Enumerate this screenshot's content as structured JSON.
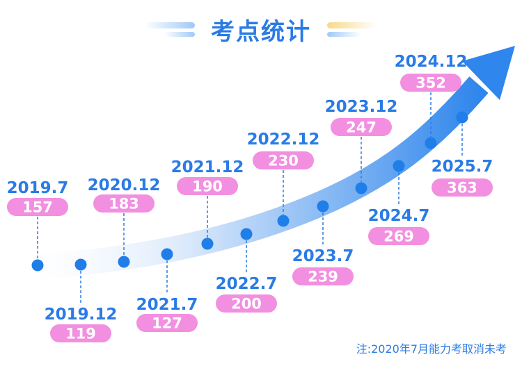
{
  "title": "考点统计",
  "footnote": "注:2020年7月能力考取消未考",
  "colors": {
    "accent": "#2a7be4",
    "dot": "#1f7ee8",
    "pill": "#f28fe0",
    "arrow_start": "#eef5ff",
    "arrow_end": "#2f86ec"
  },
  "chart_data": {
    "type": "line",
    "title": "考点统计",
    "categories": [
      "2019.7",
      "2019.12",
      "2020.12",
      "2021.7",
      "2021.12",
      "2022.7",
      "2022.12",
      "2023.7",
      "2023.12",
      "2024.7",
      "2024.12",
      "2025.7"
    ],
    "values": [
      157,
      119,
      183,
      127,
      190,
      200,
      230,
      239,
      247,
      269,
      352,
      363
    ],
    "label_placement": [
      "above",
      "below",
      "above",
      "below",
      "above",
      "below",
      "above",
      "below",
      "above",
      "below",
      "above",
      "below"
    ],
    "note": "注:2020年7月能力考取消未考"
  }
}
